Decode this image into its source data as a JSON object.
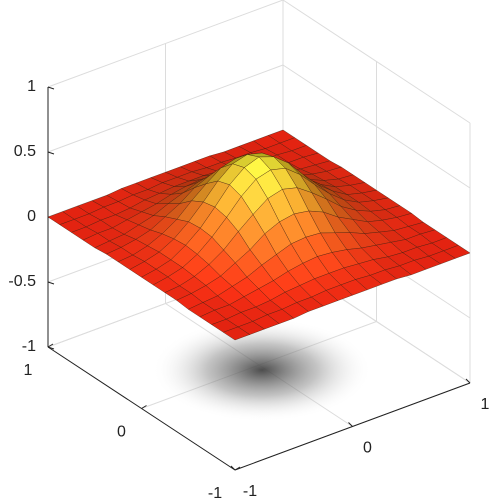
{
  "chart_data": {
    "type": "surface",
    "x": [
      -1,
      -0.875,
      -0.75,
      -0.625,
      -0.5,
      -0.375,
      -0.25,
      -0.125,
      0,
      0.125,
      0.25,
      0.375,
      0.5,
      0.625,
      0.75,
      0.875,
      1
    ],
    "y": [
      -1,
      -0.875,
      -0.75,
      -0.625,
      -0.5,
      -0.375,
      -0.25,
      -0.125,
      0,
      0.125,
      0.25,
      0.375,
      0.5,
      0.625,
      0.75,
      0.875,
      1
    ],
    "z": [
      [
        0,
        0,
        0,
        0,
        0,
        0.01,
        0.01,
        0.01,
        0.01,
        0.01,
        0.01,
        0.01,
        0,
        0,
        0,
        0,
        0
      ],
      [
        0,
        0,
        0,
        0.01,
        0.01,
        0.02,
        0.02,
        0.03,
        0.03,
        0.03,
        0.02,
        0.02,
        0.01,
        0.01,
        0,
        0,
        0
      ],
      [
        0,
        0,
        0.01,
        0.01,
        0.02,
        0.04,
        0.05,
        0.06,
        0.06,
        0.06,
        0.05,
        0.04,
        0.02,
        0.01,
        0.01,
        0,
        0
      ],
      [
        0,
        0.01,
        0.01,
        0.03,
        0.05,
        0.07,
        0.1,
        0.12,
        0.13,
        0.12,
        0.1,
        0.07,
        0.05,
        0.03,
        0.01,
        0.01,
        0
      ],
      [
        0,
        0.01,
        0.02,
        0.05,
        0.08,
        0.13,
        0.17,
        0.21,
        0.22,
        0.21,
        0.17,
        0.13,
        0.08,
        0.05,
        0.02,
        0.01,
        0
      ],
      [
        0.01,
        0.02,
        0.04,
        0.07,
        0.13,
        0.19,
        0.27,
        0.32,
        0.34,
        0.32,
        0.27,
        0.19,
        0.13,
        0.07,
        0.04,
        0.02,
        0.01
      ],
      [
        0.01,
        0.02,
        0.05,
        0.1,
        0.17,
        0.27,
        0.36,
        0.44,
        0.47,
        0.44,
        0.36,
        0.27,
        0.17,
        0.1,
        0.05,
        0.02,
        0.01
      ],
      [
        0.01,
        0.03,
        0.06,
        0.12,
        0.21,
        0.32,
        0.44,
        0.53,
        0.56,
        0.53,
        0.44,
        0.32,
        0.21,
        0.12,
        0.06,
        0.03,
        0.01
      ],
      [
        0.01,
        0.03,
        0.06,
        0.13,
        0.22,
        0.34,
        0.47,
        0.56,
        0.6,
        0.56,
        0.47,
        0.34,
        0.22,
        0.13,
        0.06,
        0.03,
        0.01
      ],
      [
        0.01,
        0.03,
        0.06,
        0.12,
        0.21,
        0.32,
        0.44,
        0.53,
        0.56,
        0.53,
        0.44,
        0.32,
        0.21,
        0.12,
        0.06,
        0.03,
        0.01
      ],
      [
        0.01,
        0.02,
        0.05,
        0.1,
        0.17,
        0.27,
        0.36,
        0.44,
        0.47,
        0.44,
        0.36,
        0.27,
        0.17,
        0.1,
        0.05,
        0.02,
        0.01
      ],
      [
        0.01,
        0.02,
        0.04,
        0.07,
        0.13,
        0.19,
        0.27,
        0.32,
        0.34,
        0.32,
        0.27,
        0.19,
        0.13,
        0.07,
        0.04,
        0.02,
        0.01
      ],
      [
        0,
        0.01,
        0.02,
        0.05,
        0.08,
        0.13,
        0.17,
        0.21,
        0.22,
        0.21,
        0.17,
        0.13,
        0.08,
        0.05,
        0.02,
        0.01,
        0
      ],
      [
        0,
        0.01,
        0.01,
        0.03,
        0.05,
        0.07,
        0.1,
        0.12,
        0.13,
        0.12,
        0.1,
        0.07,
        0.05,
        0.03,
        0.01,
        0.01,
        0
      ],
      [
        0,
        0,
        0.01,
        0.01,
        0.02,
        0.04,
        0.05,
        0.06,
        0.06,
        0.06,
        0.05,
        0.04,
        0.02,
        0.01,
        0.01,
        0,
        0
      ],
      [
        0,
        0,
        0,
        0.01,
        0.01,
        0.02,
        0.02,
        0.03,
        0.03,
        0.03,
        0.02,
        0.02,
        0.01,
        0.01,
        0,
        0,
        0
      ],
      [
        0,
        0,
        0,
        0,
        0,
        0.01,
        0.01,
        0.01,
        0.01,
        0.01,
        0.01,
        0.01,
        0,
        0,
        0,
        0,
        0
      ]
    ],
    "xlim": [
      -1,
      1
    ],
    "ylim": [
      -1,
      1
    ],
    "zlim": [
      -1,
      1
    ],
    "xticks": [
      -1,
      0,
      1
    ],
    "yticks": [
      -1,
      0,
      1
    ],
    "zticks": [
      -1,
      -0.5,
      0,
      0.5,
      1
    ],
    "grid": true
  }
}
